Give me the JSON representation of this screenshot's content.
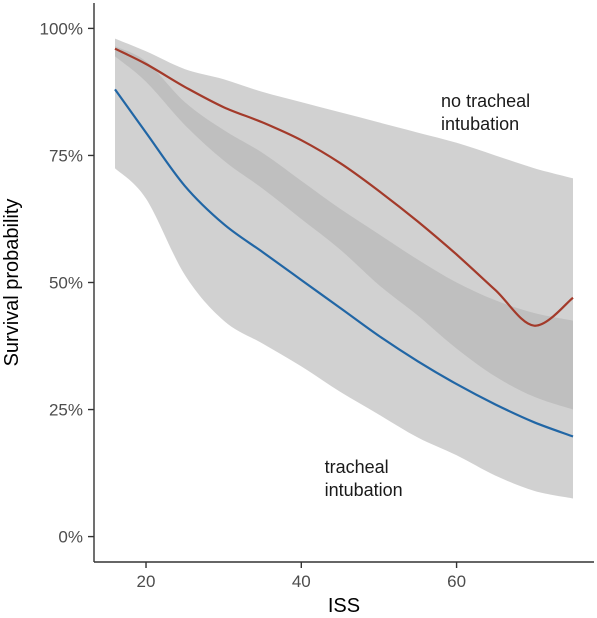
{
  "chart_data": {
    "type": "line",
    "xlabel": "ISS",
    "ylabel": "Survival probability",
    "xlim": [
      13.3,
      77.7
    ],
    "ylim": [
      -0.05,
      1.05
    ],
    "x_ticks": [
      20,
      40,
      60
    ],
    "x_tick_labels": [
      "20",
      "40",
      "60"
    ],
    "y_ticks": [
      0,
      0.25,
      0.5,
      0.75,
      1.0
    ],
    "y_tick_labels": [
      "0%",
      "25%",
      "50%",
      "75%",
      "100%"
    ],
    "grid": false,
    "legend": "none",
    "colors": {
      "ribbon": "#b3b3b3",
      "ribbon_opacity": 0.6,
      "axis": "#333333",
      "no_intubation": "#a33a2a",
      "intubation": "#2166a5"
    },
    "series": [
      {
        "key": "no_intubation",
        "x": [
          16,
          20,
          25,
          30,
          35,
          40,
          45,
          50,
          55,
          60,
          65,
          70,
          75
        ],
        "values": [
          0.96,
          0.93,
          0.885,
          0.845,
          0.815,
          0.78,
          0.735,
          0.68,
          0.62,
          0.555,
          0.485,
          0.415,
          0.47
        ],
        "lower": [
          0.945,
          0.895,
          0.81,
          0.74,
          0.685,
          0.625,
          0.565,
          0.495,
          0.435,
          0.37,
          0.315,
          0.275,
          0.25
        ],
        "upper": [
          0.98,
          0.955,
          0.92,
          0.9,
          0.875,
          0.855,
          0.835,
          0.815,
          0.795,
          0.775,
          0.75,
          0.725,
          0.705
        ]
      },
      {
        "key": "intubation",
        "x": [
          16,
          20,
          25,
          30,
          35,
          40,
          45,
          50,
          55,
          60,
          65,
          70,
          75
        ],
        "values": [
          0.88,
          0.795,
          0.69,
          0.615,
          0.56,
          0.505,
          0.45,
          0.395,
          0.345,
          0.3,
          0.26,
          0.225,
          0.197
        ],
        "lower": [
          0.725,
          0.665,
          0.515,
          0.425,
          0.38,
          0.335,
          0.285,
          0.24,
          0.195,
          0.16,
          0.12,
          0.09,
          0.075
        ],
        "upper": [
          0.965,
          0.935,
          0.855,
          0.8,
          0.755,
          0.7,
          0.645,
          0.595,
          0.545,
          0.5,
          0.465,
          0.44,
          0.425
        ]
      }
    ],
    "annotations": [
      {
        "key": "no_intubation",
        "lines": [
          "no tracheal",
          "intubation"
        ],
        "x": 58,
        "y": 0.845
      },
      {
        "key": "intubation",
        "lines": [
          "tracheal",
          "intubation"
        ],
        "x": 43,
        "y": 0.125
      }
    ]
  }
}
